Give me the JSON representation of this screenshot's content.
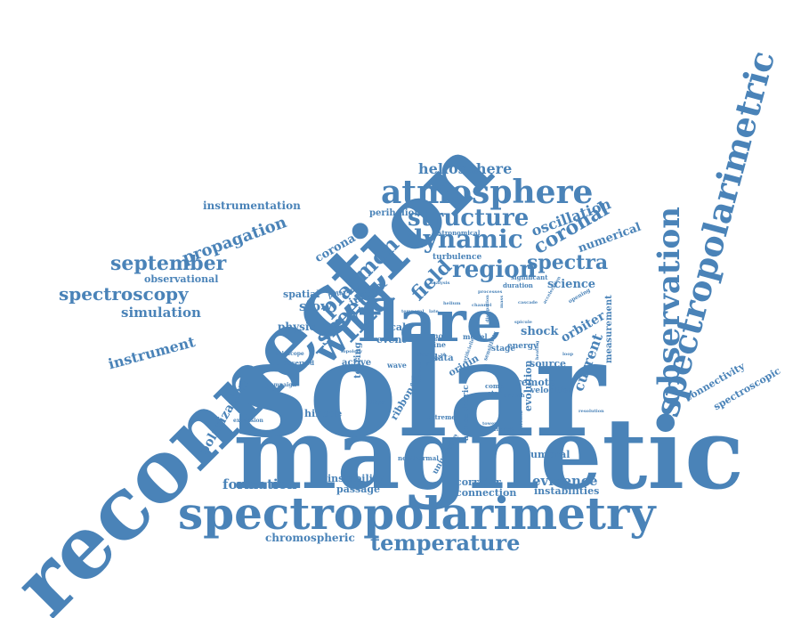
{
  "colors": {
    "text": "#4a83b8",
    "background": "#ffffff"
  },
  "words": [
    {
      "text": "reconnection",
      "size": 96,
      "angle": -45
    },
    {
      "text": "solar",
      "size": 150,
      "angle": 0
    },
    {
      "text": "magnetic",
      "size": 110,
      "angle": 0
    },
    {
      "text": "spectropolarimetry",
      "size": 50,
      "angle": 0
    },
    {
      "text": "spectropolarimetric",
      "size": 38,
      "angle": -75
    },
    {
      "text": "flare",
      "size": 64,
      "angle": 0
    },
    {
      "text": "atmosphere",
      "size": 36,
      "angle": 0
    },
    {
      "text": "observation",
      "size": 34,
      "angle": -90
    },
    {
      "text": "wind",
      "size": 40,
      "angle": -45
    },
    {
      "text": "dynamic",
      "size": 28,
      "angle": 0
    },
    {
      "text": "structure",
      "size": 26,
      "angle": 0
    },
    {
      "text": "region",
      "size": 26,
      "angle": 0
    },
    {
      "text": "spectra",
      "size": 22,
      "angle": 0
    },
    {
      "text": "coronal",
      "size": 22,
      "angle": -30
    },
    {
      "text": "plasmon",
      "size": 24,
      "angle": -45
    },
    {
      "text": "sheet",
      "size": 24,
      "angle": -45
    },
    {
      "text": "field",
      "size": 22,
      "angle": -45
    },
    {
      "text": "temperature",
      "size": 24,
      "angle": 0
    },
    {
      "text": "september",
      "size": 22,
      "angle": 0
    },
    {
      "text": "spectroscopy",
      "size": 20,
      "angle": 0
    },
    {
      "text": "propagation",
      "size": 18,
      "angle": -20
    },
    {
      "text": "heliosphere",
      "size": 16,
      "angle": 0
    },
    {
      "text": "instrumentation",
      "size": 12,
      "angle": 0
    },
    {
      "text": "oscillation",
      "size": 16,
      "angle": -20
    },
    {
      "text": "numerical",
      "size": 13,
      "angle": -20
    },
    {
      "text": "perihelion",
      "size": 10,
      "angle": 0
    },
    {
      "text": "corona",
      "size": 13,
      "angle": -30
    },
    {
      "text": "simulation",
      "size": 15,
      "angle": 0
    },
    {
      "text": "instrument",
      "size": 16,
      "angle": -15
    },
    {
      "text": "observational",
      "size": 11,
      "angle": 0
    },
    {
      "text": "spatial",
      "size": 11,
      "angle": 0
    },
    {
      "text": "slow",
      "size": 15,
      "angle": 0
    },
    {
      "text": "physic",
      "size": 12,
      "angle": 0
    },
    {
      "text": "insight",
      "size": 12,
      "angle": -30
    },
    {
      "text": "turbulence",
      "size": 9,
      "angle": 0
    },
    {
      "text": "astronomical",
      "size": 7,
      "angle": 0
    },
    {
      "text": "science",
      "size": 13,
      "angle": 0
    },
    {
      "text": "orbiter",
      "size": 14,
      "angle": -30
    },
    {
      "text": "current",
      "size": 16,
      "angle": -70
    },
    {
      "text": "shock",
      "size": 13,
      "angle": 0
    },
    {
      "text": "polarization",
      "size": 14,
      "angle": -60
    },
    {
      "text": "hinode",
      "size": 11,
      "angle": 0
    },
    {
      "text": "ribbon",
      "size": 11,
      "angle": -60
    },
    {
      "text": "connectivity",
      "size": 11,
      "angle": -30
    },
    {
      "text": "spectroscopic",
      "size": 11,
      "angle": -30
    },
    {
      "text": "formation",
      "size": 15,
      "angle": 0
    },
    {
      "text": "instability",
      "size": 11,
      "angle": 0
    },
    {
      "text": "passage",
      "size": 11,
      "angle": 0
    },
    {
      "text": "corridor",
      "size": 11,
      "angle": 0
    },
    {
      "text": "connection",
      "size": 11,
      "angle": 0
    },
    {
      "text": "evidence",
      "size": 15,
      "angle": 0
    },
    {
      "text": "instabilities",
      "size": 11,
      "angle": 0
    },
    {
      "text": "umbral",
      "size": 11,
      "angle": 0
    },
    {
      "text": "chromospheric",
      "size": 12,
      "angle": 0
    },
    {
      "text": "universite",
      "size": 9,
      "angle": -60
    },
    {
      "text": "atmospheric",
      "size": 9,
      "angle": -90
    },
    {
      "text": "nonthermal",
      "size": 7,
      "angle": 0
    },
    {
      "text": "extreme",
      "size": 7,
      "angle": 0
    },
    {
      "text": "remote",
      "size": 11,
      "angle": 0
    },
    {
      "text": "velocities",
      "size": 9,
      "angle": 0
    },
    {
      "text": "source",
      "size": 11,
      "angle": 0
    },
    {
      "text": "evolution",
      "size": 11,
      "angle": -90
    },
    {
      "text": "measurement",
      "size": 10,
      "angle": -90
    },
    {
      "text": "event",
      "size": 11,
      "angle": 0
    },
    {
      "text": "scale",
      "size": 11,
      "angle": 0
    },
    {
      "text": "stage",
      "size": 9,
      "angle": 0
    },
    {
      "text": "energy",
      "size": 9,
      "angle": 0
    },
    {
      "text": "origin",
      "size": 11,
      "angle": -30
    },
    {
      "text": "data",
      "size": 10,
      "angle": 0
    },
    {
      "text": "active",
      "size": 10,
      "angle": 0
    },
    {
      "text": "tearing",
      "size": 10,
      "angle": -90
    },
    {
      "text": "mode",
      "size": 8,
      "angle": 0
    },
    {
      "text": "line",
      "size": 8,
      "angle": 0
    },
    {
      "text": "model",
      "size": 8,
      "angle": 0
    },
    {
      "text": "significant",
      "size": 7,
      "angle": 0
    },
    {
      "text": "duration",
      "size": 7,
      "angle": 0
    },
    {
      "text": "processes",
      "size": 5,
      "angle": 0
    },
    {
      "text": "analysis",
      "size": 5,
      "angle": 0
    },
    {
      "text": "opening",
      "size": 6,
      "angle": -30
    },
    {
      "text": "polarimeter",
      "size": 7,
      "angle": -15
    },
    {
      "text": "telescope",
      "size": 6,
      "angle": 0
    },
    {
      "text": "observed",
      "size": 7,
      "angle": 0
    },
    {
      "text": "campaign",
      "size": 6,
      "angle": 0
    },
    {
      "text": "expansion",
      "size": 6,
      "angle": 0
    },
    {
      "text": "resolution",
      "size": 5,
      "angle": 0
    },
    {
      "text": "artificielle",
      "size": 5,
      "angle": -70
    },
    {
      "text": "sensitivity",
      "size": 6,
      "angle": -70
    },
    {
      "text": "wave",
      "size": 8,
      "angle": 0
    },
    {
      "text": "comp",
      "size": 7,
      "angle": 0
    },
    {
      "text": "star",
      "size": 7,
      "angle": 0
    },
    {
      "text": "thesis",
      "size": 6,
      "angle": 0
    },
    {
      "text": "topology",
      "size": 5,
      "angle": 0
    },
    {
      "text": "https",
      "size": 7,
      "angle": 0
    },
    {
      "text": "growth",
      "size": 6,
      "angle": 0
    },
    {
      "text": "french",
      "size": 6,
      "angle": 0
    },
    {
      "text": "temporal",
      "size": 5,
      "angle": 0
    },
    {
      "text": "available",
      "size": 5,
      "angle": -30
    },
    {
      "text": "helium",
      "size": 5,
      "angle": 0
    },
    {
      "text": "flux",
      "size": 6,
      "angle": -90
    },
    {
      "text": "channel",
      "size": 5,
      "angle": 0
    },
    {
      "text": "behavior",
      "size": 5,
      "angle": 0
    },
    {
      "text": "late",
      "size": 5,
      "angle": 0
    },
    {
      "text": "increase",
      "size": 5,
      "angle": -90
    },
    {
      "text": "tower",
      "size": 5,
      "angle": 0
    },
    {
      "text": "mass",
      "size": 5,
      "angle": -90
    },
    {
      "text": "hole",
      "size": 5,
      "angle": 0
    },
    {
      "text": "cascade",
      "size": 5,
      "angle": 0
    },
    {
      "text": "acceleration",
      "size": 5,
      "angle": -60
    },
    {
      "text": "emission",
      "size": 5,
      "angle": -90
    },
    {
      "text": "dissipation",
      "size": 5,
      "angle": -90
    },
    {
      "text": "spicule",
      "size": 5,
      "angle": 0
    },
    {
      "text": "heating",
      "size": 5,
      "angle": -90
    },
    {
      "text": "jet",
      "size": 5,
      "angle": 0
    },
    {
      "text": "loop",
      "size": 5,
      "angle": 0
    }
  ]
}
